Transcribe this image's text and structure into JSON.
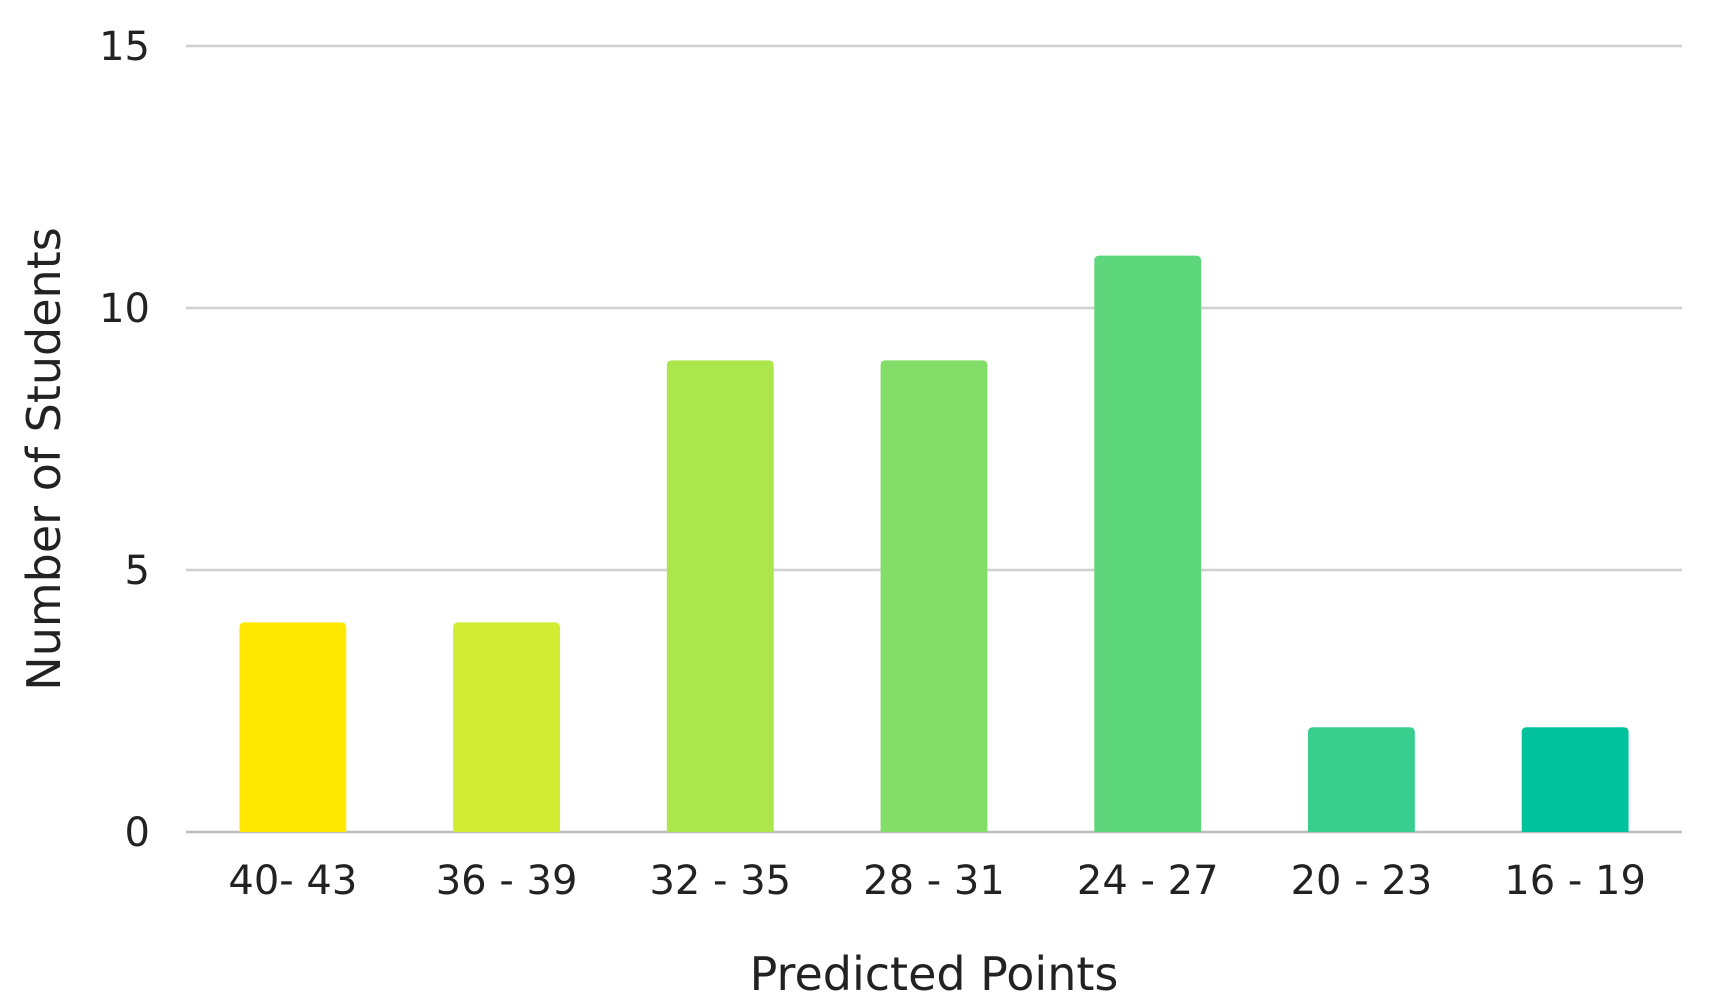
{
  "chart_data": {
    "type": "bar",
    "title": "",
    "xlabel": "Predicted Points",
    "ylabel": "Number of Students",
    "ylim": [
      0,
      15
    ],
    "yticks": [
      0,
      5,
      10,
      15
    ],
    "grid": true,
    "legend": "none",
    "categories": [
      "40- 43",
      "36 - 39",
      "32 - 35",
      "28 - 31",
      "24 - 27",
      "20 - 23",
      "16 - 19"
    ],
    "values": [
      4,
      4,
      9,
      9,
      11,
      2,
      2
    ],
    "colors": [
      "#FFE800",
      "#D2EB33",
      "#ABE64C",
      "#82DE68",
      "#5ED77C",
      "#38CE8D",
      "#00C29D"
    ]
  }
}
